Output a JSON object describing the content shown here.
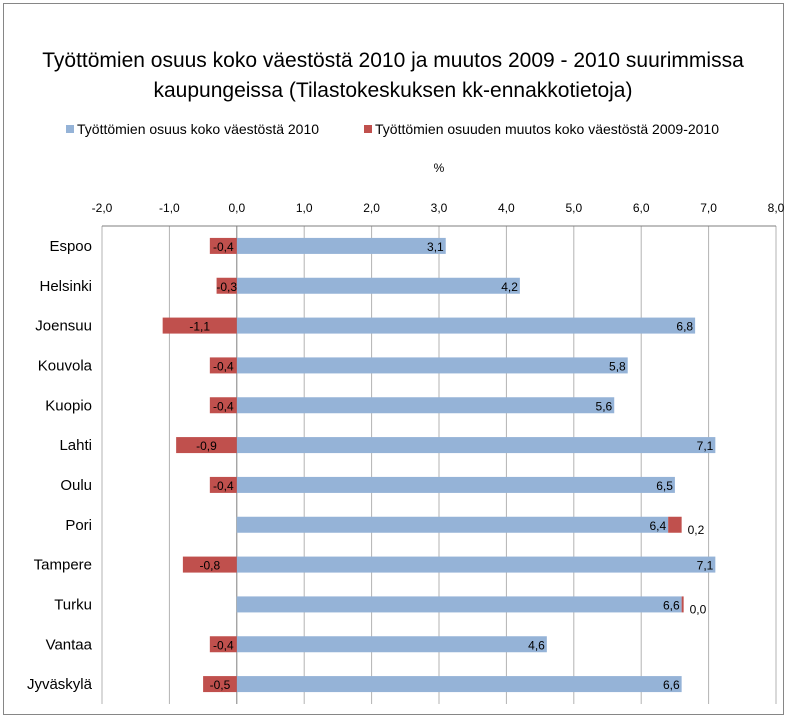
{
  "chart_data": {
    "type": "bar",
    "orientation": "horizontal",
    "title_lines": [
      "Työttömien osuus koko väestöstä 2010 ja muutos 2009 - 2010 suurimmissa",
      "kaupungeissa (Tilastokeskuksen kk-ennakkotietoja)"
    ],
    "axis_unit": "%",
    "xlim": [
      -2.0,
      8.0
    ],
    "xticks": [
      "-2,0",
      "-1,0",
      "0,0",
      "1,0",
      "2,0",
      "3,0",
      "4,0",
      "5,0",
      "6,0",
      "7,0",
      "8,0"
    ],
    "x_axis_position": "top",
    "grid": "vertical",
    "legend_position": "top",
    "categories": [
      "Espoo",
      "Helsinki",
      "Joensuu",
      "Kouvola",
      "Kuopio",
      "Lahti",
      "Oulu",
      "Pori",
      "Tampere",
      "Turku",
      "Vantaa",
      "Jyväskylä"
    ],
    "series": [
      {
        "name": "Työttömien osuus koko väestöstä 2010",
        "color": "#95b3d7",
        "stacking": "from zero",
        "values": [
          3.1,
          4.2,
          6.8,
          5.8,
          5.6,
          7.1,
          6.5,
          6.4,
          7.1,
          6.6,
          4.6,
          6.6
        ],
        "labels": [
          "3,1",
          "4,2",
          "6,8",
          "5,8",
          "5,6",
          "7,1",
          "6,5",
          "6,4",
          "7,1",
          "6,6",
          "4,6",
          "6,6"
        ]
      },
      {
        "name": "Työttömien osuuden muutos koko väestöstä 2009-2010",
        "color": "#c0504d",
        "stacking": "stacked on first series when positive",
        "values": [
          -0.4,
          -0.3,
          -1.1,
          -0.4,
          -0.4,
          -0.9,
          -0.4,
          0.2,
          -0.8,
          0.0,
          -0.4,
          -0.5
        ],
        "labels": [
          "-0,4",
          "-0,3",
          "-1,1",
          "-0,4",
          "-0,4",
          "-0,9",
          "-0,4",
          "0,2",
          "-0,8",
          "0,0",
          "-0,4",
          "-0,5"
        ]
      }
    ]
  }
}
